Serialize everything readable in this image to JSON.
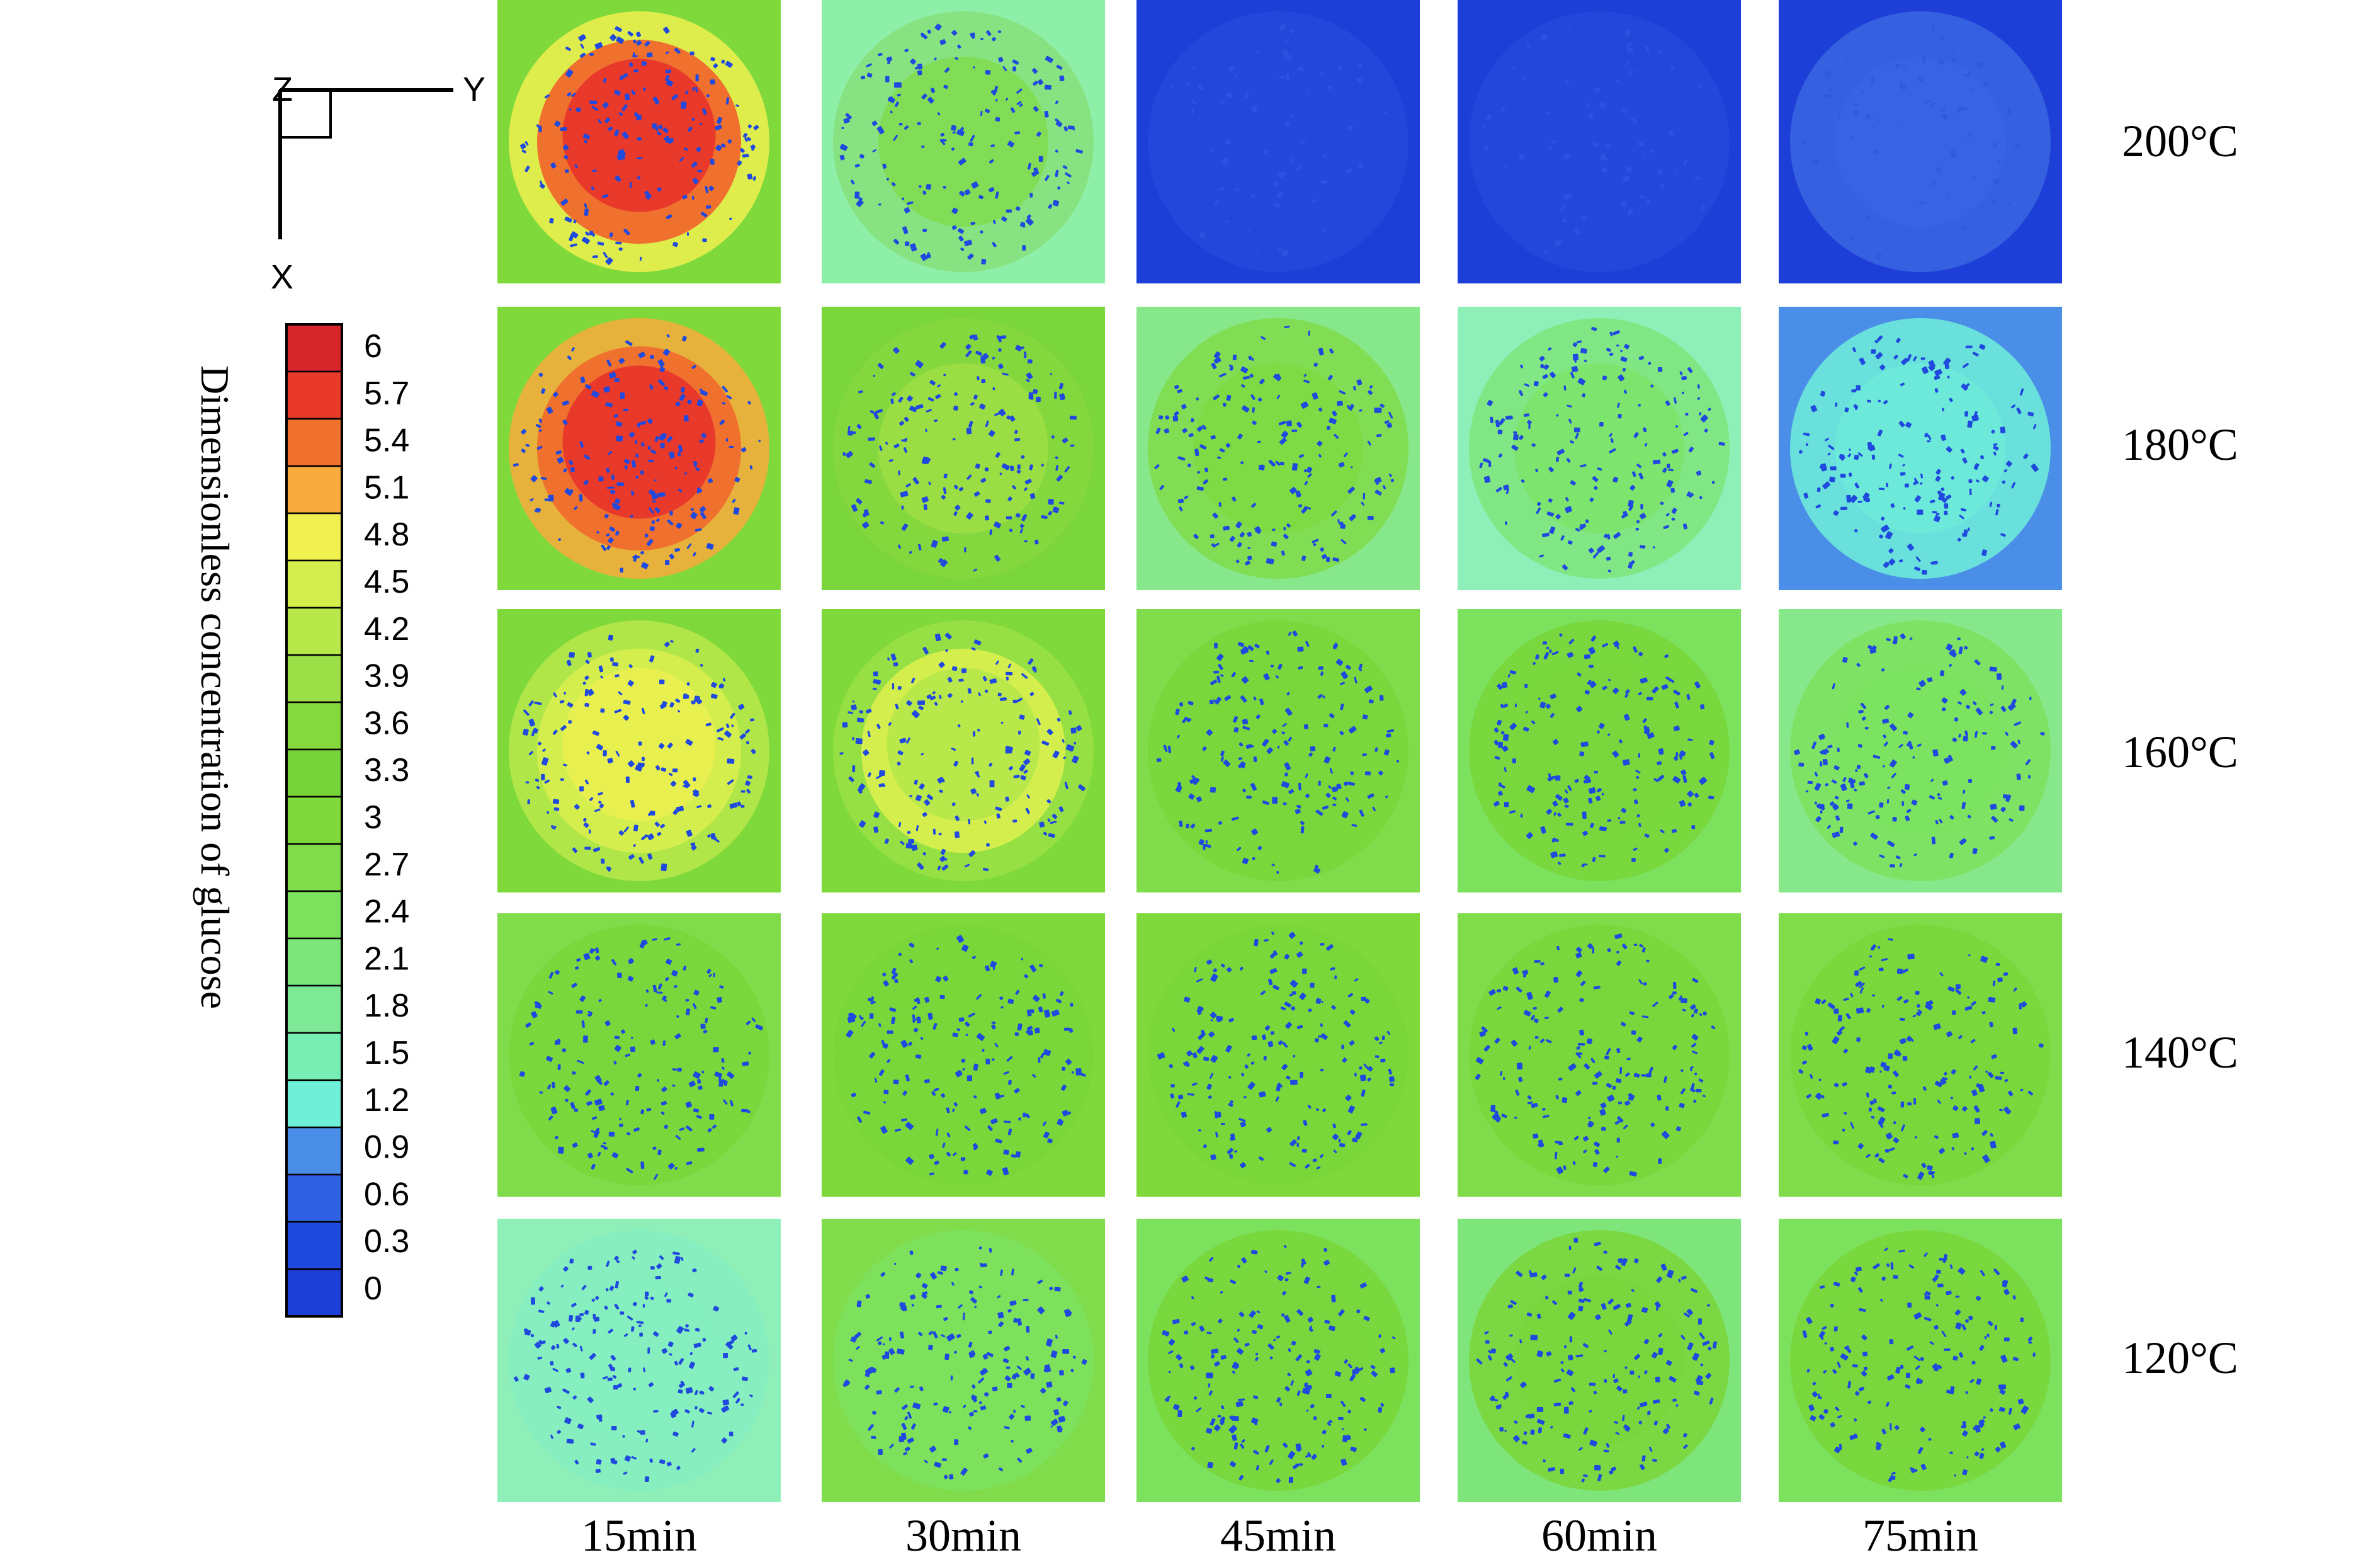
{
  "axes_indicator": {
    "z_label": "Z",
    "y_label": "Y",
    "x_label": "X"
  },
  "colorbar": {
    "title": "Dimensionless concentration of glucose",
    "ticks": [
      "6",
      "5.7",
      "5.4",
      "5.1",
      "4.8",
      "4.5",
      "4.2",
      "3.9",
      "3.6",
      "3.3",
      "3",
      "2.7",
      "2.4",
      "2.1",
      "1.8",
      "1.5",
      "1.2",
      "0.9",
      "0.6",
      "0.3",
      "0"
    ],
    "colors": [
      "#d7262a",
      "#e8392a",
      "#f0702e",
      "#f8aa3c",
      "#f0f050",
      "#d4ef4d",
      "#b8e84a",
      "#9be046",
      "#86d83f",
      "#78d23a",
      "#7fd93b",
      "#80dc4a",
      "#7ce25e",
      "#7ee57a",
      "#7de895",
      "#79eeb4",
      "#6fefd8",
      "#4a8ee8",
      "#2f62e3",
      "#2049de",
      "#1d3fd8"
    ]
  },
  "columns": [
    "15min",
    "30min",
    "45min",
    "60min",
    "75min"
  ],
  "rows": [
    "200°C",
    "180°C",
    "160°C",
    "140°C",
    "120°C"
  ],
  "panels": [
    [
      {
        "bg": "#7fd93b",
        "inner": "#e8392a",
        "mid": "#f0f050",
        "dots": "#2049de",
        "pattern": "hot"
      },
      {
        "bg": "#8ef0a8",
        "inner": "#7fd93b",
        "mid": "#86e07a",
        "dots": "#2049de",
        "pattern": "normal"
      },
      {
        "bg": "#1d3fd8",
        "inner": "#2448dc",
        "mid": "#2448dc",
        "dots": "#3560e6",
        "pattern": "faint"
      },
      {
        "bg": "#1d3fd8",
        "inner": "#2448dc",
        "mid": "#2448dc",
        "dots": "#3560e6",
        "pattern": "faint"
      },
      {
        "bg": "#1d3fd8",
        "inner": "#3a66e2",
        "mid": "#3a66e2",
        "dots": "#2a52dc",
        "pattern": "faint"
      }
    ],
    [
      {
        "bg": "#7fd93b",
        "inner": "#e8392a",
        "mid": "#f8aa3c",
        "dots": "#2049de",
        "pattern": "hot"
      },
      {
        "bg": "#7ad63a",
        "inner": "#a8e24a",
        "mid": "#86d83f",
        "dots": "#2049de",
        "pattern": "normal"
      },
      {
        "bg": "#86e88a",
        "inner": "#7fd93b",
        "mid": "#80dc4a",
        "dots": "#2049de",
        "pattern": "normal"
      },
      {
        "bg": "#8ef0b8",
        "inner": "#7ce25e",
        "mid": "#7ee57a",
        "dots": "#2049de",
        "pattern": "normal"
      },
      {
        "bg": "#4a8ee8",
        "inner": "#6fefd8",
        "mid": "#6fefd8",
        "dots": "#2049de",
        "pattern": "normal"
      }
    ],
    [
      {
        "bg": "#7fd93b",
        "inner": "#e8f050",
        "mid": "#b8e84a",
        "dots": "#2049de",
        "pattern": "warm"
      },
      {
        "bg": "#7fd93b",
        "inner": "#b8e84a",
        "mid": "#9be046",
        "dots": "#2049de",
        "pattern": "warm"
      },
      {
        "bg": "#80dc4a",
        "inner": "#7ad63a",
        "mid": "#7ad63a",
        "dots": "#2049de",
        "pattern": "normal"
      },
      {
        "bg": "#7ce25e",
        "inner": "#7ad63a",
        "mid": "#7ad63a",
        "dots": "#2049de",
        "pattern": "normal"
      },
      {
        "bg": "#86e88a",
        "inner": "#7ce25e",
        "mid": "#7ce25e",
        "dots": "#2049de",
        "pattern": "normal"
      }
    ],
    [
      {
        "bg": "#80dc4a",
        "inner": "#7ad63a",
        "mid": "#7ad63a",
        "dots": "#2049de",
        "pattern": "normal"
      },
      {
        "bg": "#7fd93b",
        "inner": "#7ad63a",
        "mid": "#7ad63a",
        "dots": "#2049de",
        "pattern": "normal"
      },
      {
        "bg": "#7fd93b",
        "inner": "#7ad63a",
        "mid": "#7ad63a",
        "dots": "#2049de",
        "pattern": "normal"
      },
      {
        "bg": "#80dc4a",
        "inner": "#7ad63a",
        "mid": "#7ad63a",
        "dots": "#2049de",
        "pattern": "normal"
      },
      {
        "bg": "#80dc4a",
        "inner": "#7ad63a",
        "mid": "#7ad63a",
        "dots": "#2049de",
        "pattern": "normal"
      }
    ],
    [
      {
        "bg": "#8ef0b8",
        "inner": "#86eec0",
        "mid": "#86eec0",
        "dots": "#2049de",
        "pattern": "normal"
      },
      {
        "bg": "#80dc4a",
        "inner": "#7ce25e",
        "mid": "#7ce25e",
        "dots": "#2049de",
        "pattern": "normal"
      },
      {
        "bg": "#7ce25e",
        "inner": "#7ad63a",
        "mid": "#7ad63a",
        "dots": "#2049de",
        "pattern": "normal"
      },
      {
        "bg": "#7ee57a",
        "inner": "#7ad63a",
        "mid": "#7ad63a",
        "dots": "#2049de",
        "pattern": "normal"
      },
      {
        "bg": "#7ce25e",
        "inner": "#7ad63a",
        "mid": "#7ad63a",
        "dots": "#2049de",
        "pattern": "normal"
      }
    ]
  ]
}
